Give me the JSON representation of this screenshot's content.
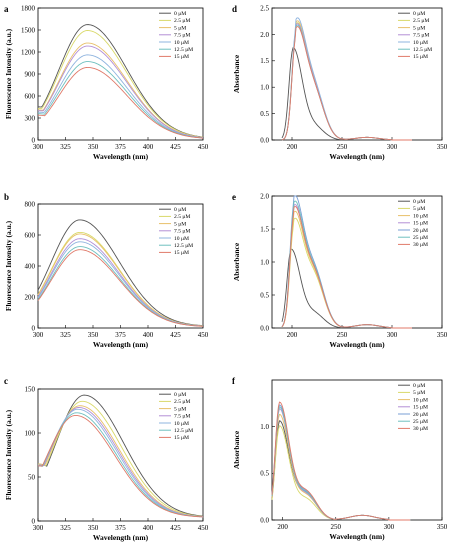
{
  "figure": {
    "panels": [
      "a",
      "b",
      "c",
      "d",
      "e",
      "f"
    ]
  },
  "colors": {
    "0": "#555555",
    "2.5": "#d9d96a",
    "5": "#e8c06a",
    "7.5": "#b38fd6",
    "10": "#8fb4df",
    "12.5": "#6fc0bf",
    "15": "#e07a6a",
    "20": "#7a9fd6",
    "25": "#6fc0bf",
    "30": "#e07a6a"
  },
  "chart_data": [
    {
      "panel": "a",
      "type": "line",
      "xlabel": "Wavelength (nm)",
      "ylabel": "Fluorescence Intensity (a.u.)",
      "xlim": [
        300,
        450
      ],
      "ylim": [
        0,
        1800
      ],
      "xticks": [
        300,
        325,
        350,
        375,
        400,
        425,
        450
      ],
      "yticks": [
        0,
        300,
        600,
        900,
        1200,
        1500,
        1800
      ],
      "legend_position": "top-right",
      "series": [
        {
          "name": "0 μM",
          "color_key": "0",
          "peak": 1560,
          "peak_x": 345,
          "start": 440,
          "end": 18
        },
        {
          "name": "2.5 μM",
          "color_key": "2.5",
          "peak": 1480,
          "peak_x": 345,
          "start": 420,
          "end": 17
        },
        {
          "name": "5 μM",
          "color_key": "5",
          "peak": 1310,
          "peak_x": 345,
          "start": 400,
          "end": 16
        },
        {
          "name": "7.5 μM",
          "color_key": "7.5",
          "peak": 1270,
          "peak_x": 345,
          "start": 390,
          "end": 15
        },
        {
          "name": "10 μM",
          "color_key": "10",
          "peak": 1150,
          "peak_x": 345,
          "start": 370,
          "end": 14
        },
        {
          "name": "12.5 μM",
          "color_key": "12.5",
          "peak": 1060,
          "peak_x": 345,
          "start": 350,
          "end": 13
        },
        {
          "name": "15 μM",
          "color_key": "15",
          "peak": 980,
          "peak_x": 345,
          "start": 330,
          "end": 12
        }
      ]
    },
    {
      "panel": "b",
      "type": "line",
      "xlabel": "Wavelength (nm)",
      "ylabel": "Fluorescence Intensity (a.u.)",
      "xlim": [
        300,
        450
      ],
      "ylim": [
        0,
        800
      ],
      "xticks": [
        300,
        325,
        350,
        375,
        400,
        425,
        450
      ],
      "yticks": [
        0,
        200,
        400,
        600,
        800
      ],
      "legend_position": "top-right",
      "series": [
        {
          "name": "0 μM",
          "color_key": "0",
          "peak": 690,
          "peak_x": 338,
          "start": 150,
          "end": 10
        },
        {
          "name": "2.5 μM",
          "color_key": "2.5",
          "peak": 610,
          "peak_x": 338,
          "start": 140,
          "end": 9
        },
        {
          "name": "5 μM",
          "color_key": "5",
          "peak": 600,
          "peak_x": 338,
          "start": 138,
          "end": 9
        },
        {
          "name": "7.5 μM",
          "color_key": "7.5",
          "peak": 570,
          "peak_x": 338,
          "start": 135,
          "end": 8
        },
        {
          "name": "10 μM",
          "color_key": "10",
          "peak": 550,
          "peak_x": 338,
          "start": 130,
          "end": 8
        },
        {
          "name": "12.5 μM",
          "color_key": "12.5",
          "peak": 520,
          "peak_x": 338,
          "start": 125,
          "end": 7
        },
        {
          "name": "15 μM",
          "color_key": "15",
          "peak": 500,
          "peak_x": 338,
          "start": 120,
          "end": 7
        }
      ]
    },
    {
      "panel": "c",
      "type": "line",
      "xlabel": "Wavelength (nm)",
      "ylabel": "Fluorescence Intensity (a.u.)",
      "xlim": [
        300,
        450
      ],
      "ylim": [
        0,
        150
      ],
      "xticks": [
        300,
        325,
        350,
        375,
        400,
        425,
        450
      ],
      "yticks": [
        0,
        50,
        100,
        150
      ],
      "legend_position": "top-right",
      "series": [
        {
          "name": "0 μM",
          "color_key": "0",
          "peak": 140,
          "peak_x": 342,
          "start": 62,
          "end": 4
        },
        {
          "name": "2.5 μM",
          "color_key": "2.5",
          "peak": 133,
          "peak_x": 340,
          "start": 62,
          "end": 4
        },
        {
          "name": "5 μM",
          "color_key": "5",
          "peak": 128,
          "peak_x": 338,
          "start": 62,
          "end": 4
        },
        {
          "name": "7.5 μM",
          "color_key": "7.5",
          "peak": 126,
          "peak_x": 337,
          "start": 61,
          "end": 4
        },
        {
          "name": "10 μM",
          "color_key": "10",
          "peak": 124,
          "peak_x": 336,
          "start": 61,
          "end": 4
        },
        {
          "name": "12.5 μM",
          "color_key": "12.5",
          "peak": 120,
          "peak_x": 335,
          "start": 60,
          "end": 4
        },
        {
          "name": "15 μM",
          "color_key": "15",
          "peak": 117,
          "peak_x": 334,
          "start": 60,
          "end": 4
        }
      ]
    },
    {
      "panel": "d",
      "type": "line",
      "xlabel": "Wavelength (nm)",
      "ylabel": "Absorbance",
      "xlim": [
        180,
        350
      ],
      "ylim": [
        0,
        2.5
      ],
      "xticks": [
        200,
        250,
        300,
        350
      ],
      "yticks": [
        0.0,
        0.5,
        1.0,
        1.5,
        2.0,
        2.5
      ],
      "legend_position": "top-right",
      "series": [
        {
          "name": "0 μM",
          "color_key": "0",
          "peak": 1.72,
          "peak_x": 201,
          "shoulder": 0.25
        },
        {
          "name": "2.5 μM",
          "color_key": "2.5",
          "peak": 2.02,
          "peak_x": 204,
          "shoulder": 0.9
        },
        {
          "name": "5 μM",
          "color_key": "5",
          "peak": 2.05,
          "peak_x": 204,
          "shoulder": 0.92
        },
        {
          "name": "7.5 μM",
          "color_key": "7.5",
          "peak": 2.0,
          "peak_x": 204,
          "shoulder": 0.9
        },
        {
          "name": "10 μM",
          "color_key": "10",
          "peak": 2.1,
          "peak_x": 204,
          "shoulder": 0.95
        },
        {
          "name": "12.5 μM",
          "color_key": "12.5",
          "peak": 1.98,
          "peak_x": 204,
          "shoulder": 0.88
        },
        {
          "name": "15 μM",
          "color_key": "15",
          "peak": 1.95,
          "peak_x": 204,
          "shoulder": 0.88
        }
      ]
    },
    {
      "panel": "e",
      "type": "line",
      "xlabel": "Wavelength (nm)",
      "ylabel": "Absorbance",
      "xlim": [
        180,
        350
      ],
      "ylim": [
        0,
        2.0
      ],
      "xticks": [
        200,
        250,
        300,
        350
      ],
      "yticks": [
        0.0,
        0.5,
        1.0,
        1.5,
        2.0
      ],
      "legend_position": "top-right",
      "series": [
        {
          "name": "0 μM",
          "color_key": "0",
          "peak": 1.18,
          "peak_x": 199,
          "shoulder": 0.22
        },
        {
          "name": "5 μM",
          "color_key": "2.5",
          "peak": 1.55,
          "peak_x": 202,
          "shoulder": 0.75
        },
        {
          "name": "10 μM",
          "color_key": "5",
          "peak": 1.65,
          "peak_x": 202,
          "shoulder": 0.78
        },
        {
          "name": "15 μM",
          "color_key": "7.5",
          "peak": 1.75,
          "peak_x": 202,
          "shoulder": 0.8
        },
        {
          "name": "20 μM",
          "color_key": "20",
          "peak": 1.88,
          "peak_x": 202,
          "shoulder": 0.85
        },
        {
          "name": "25 μM",
          "color_key": "25",
          "peak": 1.8,
          "peak_x": 202,
          "shoulder": 0.82
        },
        {
          "name": "30 μM",
          "color_key": "30",
          "peak": 1.72,
          "peak_x": 202,
          "shoulder": 0.8
        }
      ]
    },
    {
      "panel": "f",
      "type": "line",
      "xlabel": "Wavelength (nm)",
      "ylabel": "Absorbance",
      "xlim": [
        190,
        350
      ],
      "ylim": [
        0,
        1.5
      ],
      "xticks": [
        200,
        250,
        300,
        350
      ],
      "yticks": [
        0.0,
        0.5,
        1.0
      ],
      "legend_position": "top-right",
      "series": [
        {
          "name": "0 μM",
          "color_key": "0",
          "peak": 1.05,
          "peak_x": 197,
          "shoulder": 0.28
        },
        {
          "name": "5 μM",
          "color_key": "2.5",
          "peak": 1.0,
          "peak_x": 197,
          "shoulder": 0.22
        },
        {
          "name": "10 μM",
          "color_key": "5",
          "peak": 1.12,
          "peak_x": 197,
          "shoulder": 0.26
        },
        {
          "name": "15 μM",
          "color_key": "7.5",
          "peak": 1.18,
          "peak_x": 197,
          "shoulder": 0.27
        },
        {
          "name": "20 μM",
          "color_key": "20",
          "peak": 1.22,
          "peak_x": 197,
          "shoulder": 0.29
        },
        {
          "name": "25 μM",
          "color_key": "25",
          "peak": 1.2,
          "peak_x": 197,
          "shoulder": 0.28
        },
        {
          "name": "30 μM",
          "color_key": "30",
          "peak": 1.25,
          "peak_x": 197,
          "shoulder": 0.3
        }
      ]
    }
  ]
}
